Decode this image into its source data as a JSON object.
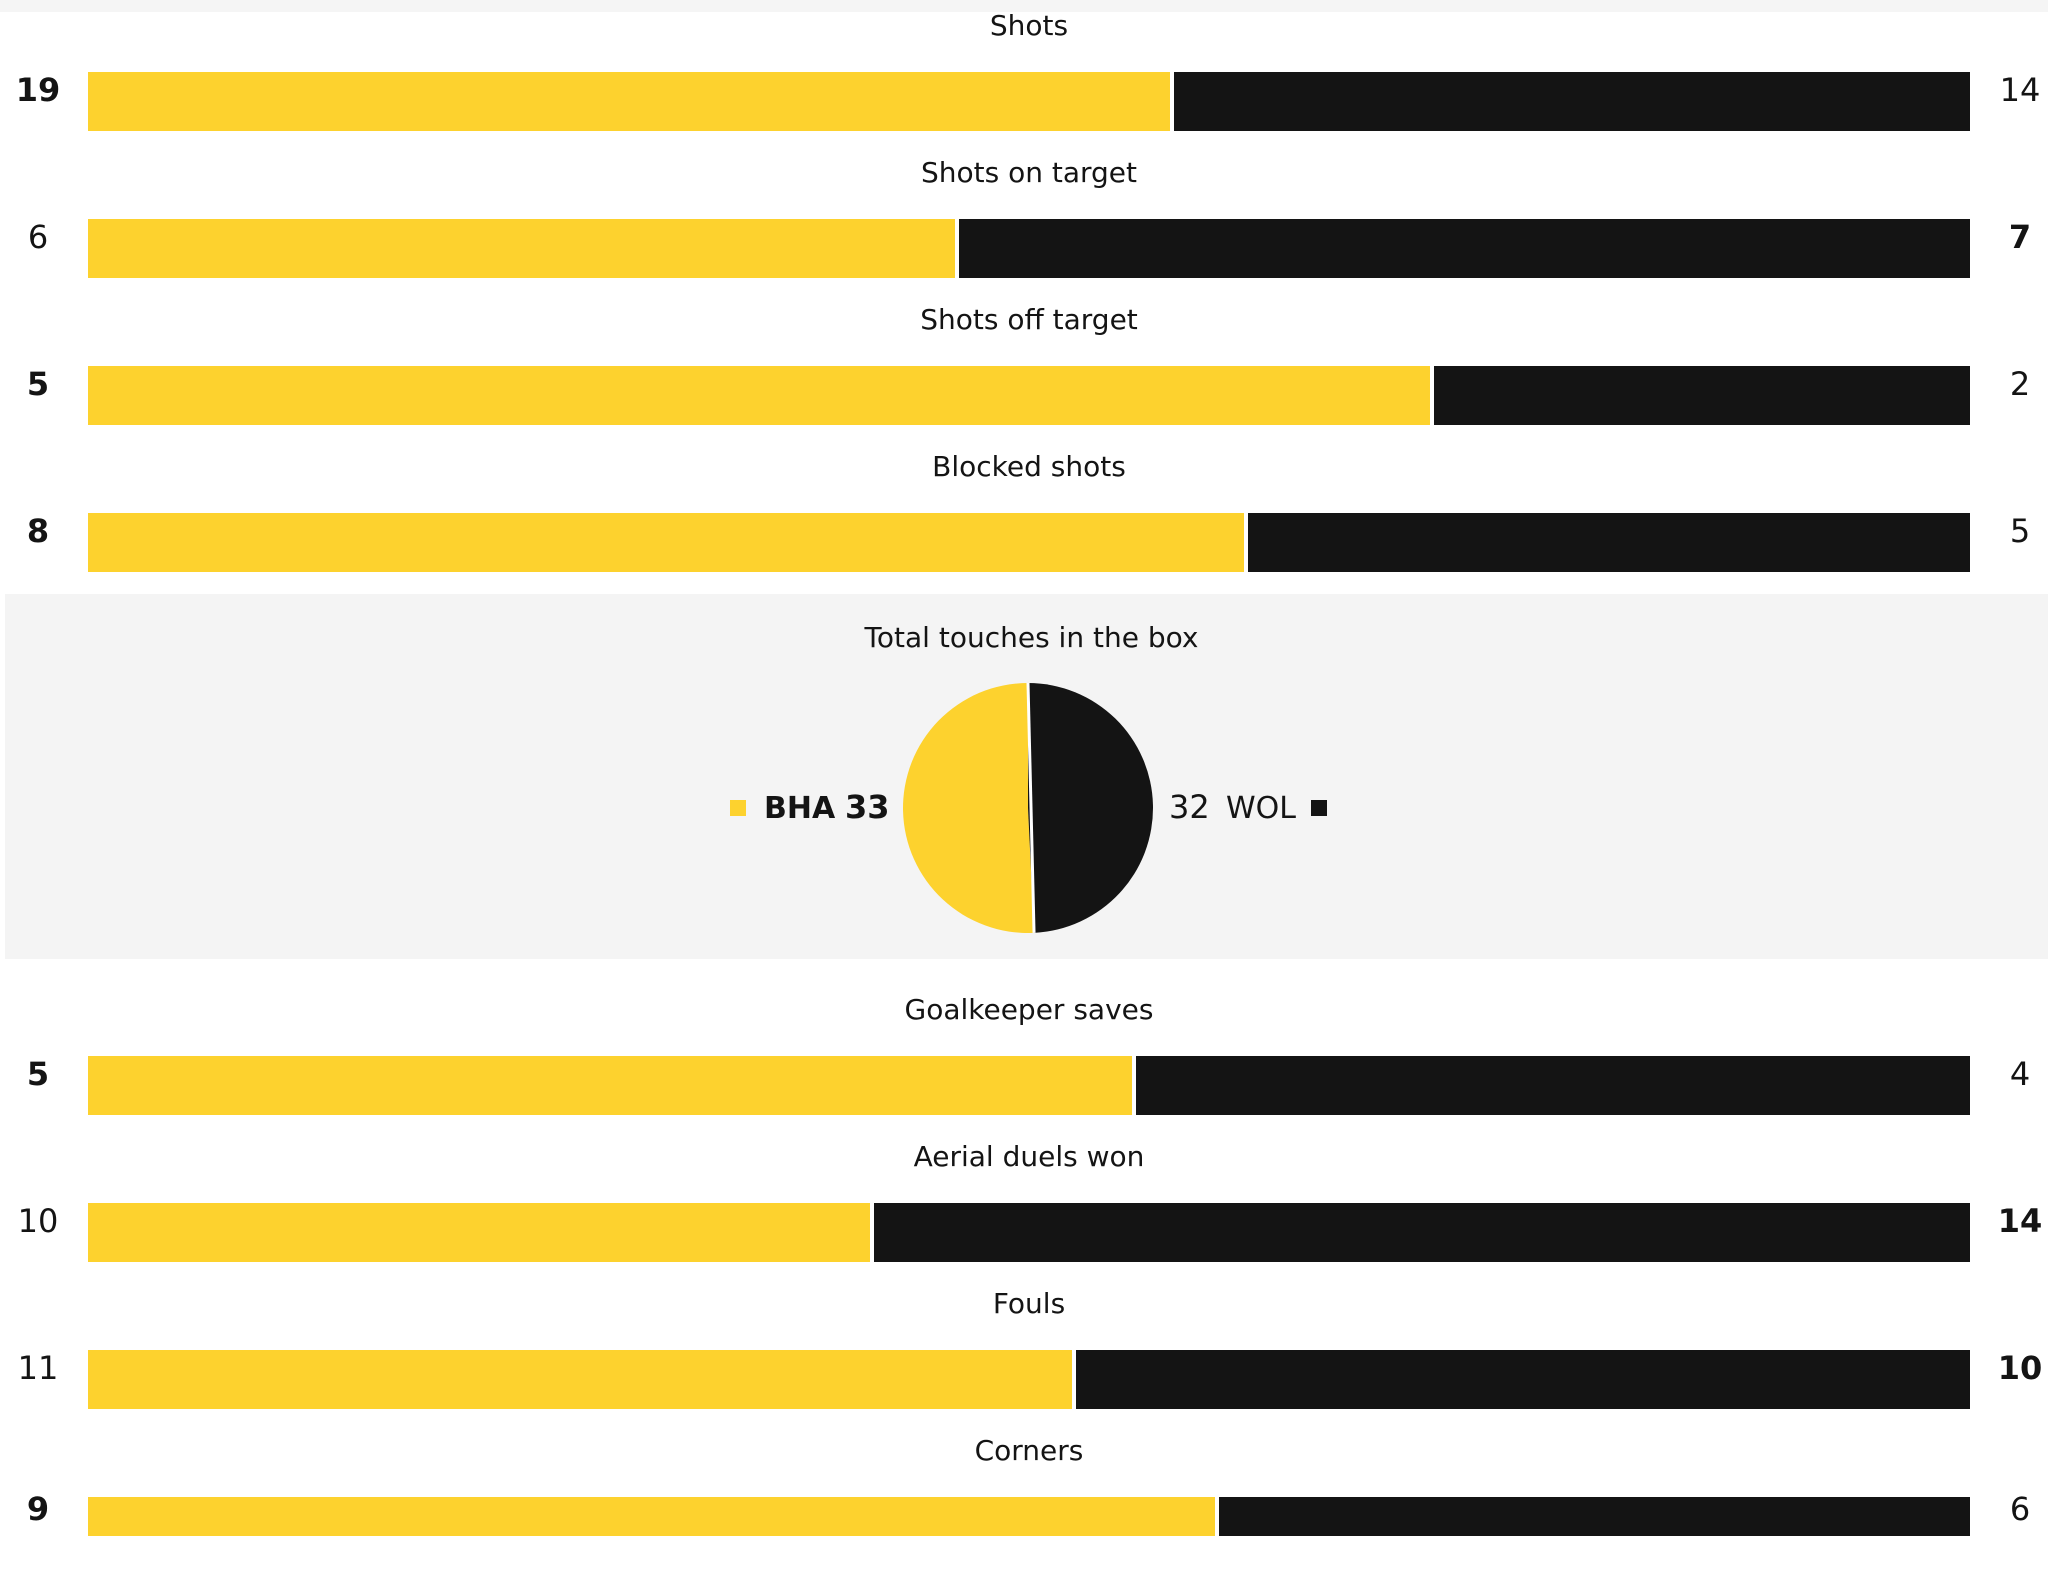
{
  "colors": {
    "home": "#fdd22e",
    "away": "#141414"
  },
  "chart_data": [
    {
      "type": "bar",
      "orientation": "horizontal-stacked",
      "series": [
        {
          "name": "BHA"
        },
        {
          "name": "WOL"
        }
      ],
      "stats": [
        {
          "label": "Shots",
          "home": 19,
          "away": 14,
          "home_bold": true,
          "away_bold": false
        },
        {
          "label": "Shots on target",
          "home": 6,
          "away": 7,
          "home_bold": false,
          "away_bold": true
        },
        {
          "label": "Shots off target",
          "home": 5,
          "away": 2,
          "home_bold": true,
          "away_bold": false
        },
        {
          "label": "Blocked shots",
          "home": 8,
          "away": 5,
          "home_bold": true,
          "away_bold": false
        }
      ]
    },
    {
      "type": "pie",
      "title": "Total touches in the box",
      "slices": [
        {
          "team": "BHA",
          "value": 33,
          "color": "#fdd22e"
        },
        {
          "team": "WOL",
          "value": 32,
          "color": "#141414"
        }
      ]
    },
    {
      "type": "bar",
      "orientation": "horizontal-stacked",
      "series": [
        {
          "name": "BHA"
        },
        {
          "name": "WOL"
        }
      ],
      "stats": [
        {
          "label": "Goalkeeper saves",
          "home": 5,
          "away": 4,
          "home_bold": true,
          "away_bold": false
        },
        {
          "label": "Aerial duels won",
          "home": 10,
          "away": 14,
          "home_bold": false,
          "away_bold": true
        },
        {
          "label": "Fouls",
          "home": 11,
          "away": 10,
          "home_bold": false,
          "away_bold": true
        },
        {
          "label": "Corners",
          "home": 9,
          "away": 6,
          "home_bold": true,
          "away_bold": false
        }
      ]
    }
  ]
}
